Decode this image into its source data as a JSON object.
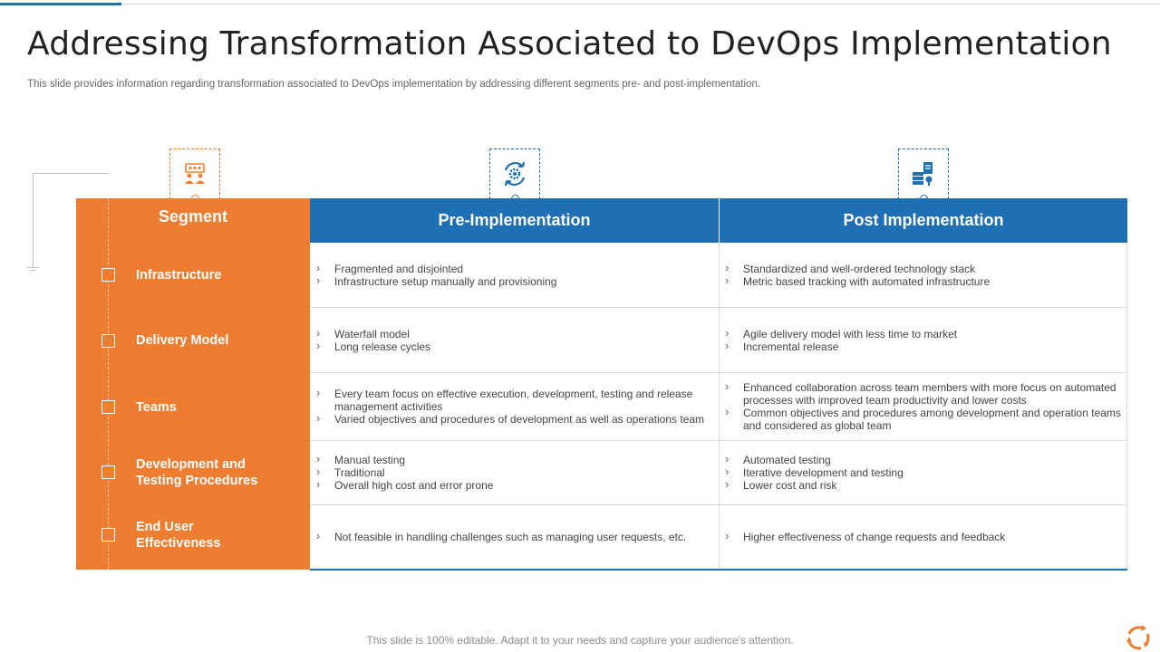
{
  "slide": {
    "title": "Addressing Transformation Associated to DevOps Implementation",
    "subtitle": "This slide provides information regarding transformation associated to DevOps implementation by addressing different segments pre- and post-implementation.",
    "footer": "This slide is 100% editable. Adapt it to your needs and capture your audience's attention."
  },
  "colors": {
    "accent_orange": "#ed7d31",
    "accent_blue": "#1f6fb5"
  },
  "icons": {
    "segment": "team-meeting-icon",
    "pre": "gear-cycle-icon",
    "post": "server-document-icon",
    "corner": "refresh-cycle-icon"
  },
  "table": {
    "segment_header": "Segment",
    "pre_header": "Pre-Implementation",
    "post_header": "Post Implementation",
    "rows": [
      {
        "segment": "Infrastructure",
        "pre": [
          "Fragmented and disjointed",
          "Infrastructure setup manually and provisioning"
        ],
        "post": [
          "Standardized and well-ordered technology stack",
          "Metric based tracking with automated infrastructure"
        ]
      },
      {
        "segment": "Delivery Model",
        "pre": [
          "Waterfall model",
          "Long release cycles"
        ],
        "post": [
          "Agile delivery model with less time to market",
          "Incremental release"
        ]
      },
      {
        "segment": "Teams",
        "pre": [
          "Every team focus on effective execution, development, testing and release management activities",
          "Varied objectives and procedures of development as well as operations team"
        ],
        "post": [
          "Enhanced collaboration across team members with more focus on automated processes with improved team productivity and lower costs",
          "Common objectives and procedures among development and operation teams and considered as global team"
        ]
      },
      {
        "segment": "Development and Testing Procedures",
        "pre": [
          "Manual testing",
          "Traditional",
          "Overall high cost and error prone"
        ],
        "post": [
          "Automated testing",
          "Iterative development and testing",
          "Lower cost and risk"
        ]
      },
      {
        "segment": "End User Effectiveness",
        "pre": [
          "Not feasible in handling challenges such as managing user requests, etc."
        ],
        "post": [
          "Higher effectiveness of change requests and feedback"
        ]
      }
    ]
  }
}
